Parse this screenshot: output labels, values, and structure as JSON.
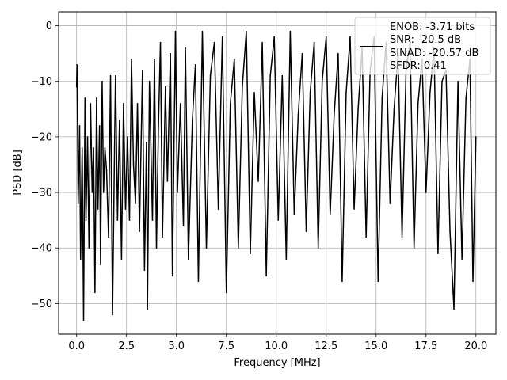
{
  "chart_data": {
    "type": "line",
    "xlabel": "Frequency [MHz]",
    "ylabel": "PSD [dB]",
    "xlim": [
      -0.9,
      21.0
    ],
    "ylim": [
      -55.5,
      2.5
    ],
    "x_ticks": [
      0.0,
      2.5,
      5.0,
      7.5,
      10.0,
      12.5,
      15.0,
      17.5,
      20.0
    ],
    "x_tick_labels": [
      "0.0",
      "2.5",
      "5.0",
      "7.5",
      "10.0",
      "12.5",
      "15.0",
      "17.5",
      "20.0"
    ],
    "y_ticks": [
      0,
      -10,
      -20,
      -30,
      -40,
      -50
    ],
    "y_tick_labels": [
      "0",
      "−10",
      "−20",
      "−30",
      "−40",
      "−50"
    ],
    "grid": true,
    "legend_position": "top-right",
    "legend_lines": [
      "ENOB: -3.71 bits",
      "SNR: -20.5 dB",
      "SINAD: -20.57 dB",
      "SFDR: 0.41"
    ],
    "series": [
      {
        "color": "#000000",
        "x": [
          0.0,
          0.02,
          0.08,
          0.15,
          0.2,
          0.28,
          0.35,
          0.42,
          0.47,
          0.55,
          0.62,
          0.7,
          0.78,
          0.85,
          0.92,
          1.0,
          1.07,
          1.15,
          1.2,
          1.28,
          1.35,
          1.42,
          1.5,
          1.6,
          1.7,
          1.8,
          1.9,
          1.95,
          2.05,
          2.15,
          2.25,
          2.35,
          2.45,
          2.55,
          2.65,
          2.75,
          2.85,
          2.95,
          3.05,
          3.15,
          3.3,
          3.4,
          3.5,
          3.55,
          3.65,
          3.8,
          3.9,
          4.0,
          4.1,
          4.2,
          4.3,
          4.45,
          4.55,
          4.7,
          4.8,
          4.95,
          5.05,
          5.2,
          5.35,
          5.45,
          5.6,
          5.8,
          5.95,
          6.1,
          6.3,
          6.5,
          6.7,
          6.9,
          7.1,
          7.3,
          7.5,
          7.7,
          7.9,
          8.1,
          8.3,
          8.5,
          8.7,
          8.9,
          9.1,
          9.3,
          9.5,
          9.7,
          9.9,
          10.1,
          10.3,
          10.5,
          10.7,
          10.9,
          11.1,
          11.3,
          11.5,
          11.7,
          11.9,
          12.1,
          12.3,
          12.5,
          12.7,
          12.9,
          13.1,
          13.3,
          13.5,
          13.7,
          13.9,
          14.1,
          14.3,
          14.5,
          14.7,
          14.9,
          15.1,
          15.3,
          15.5,
          15.7,
          15.9,
          16.1,
          16.3,
          16.5,
          16.7,
          16.9,
          17.1,
          17.3,
          17.5,
          17.7,
          17.9,
          18.1,
          18.3,
          18.5,
          18.7,
          18.9,
          19.1,
          19.3,
          19.5,
          19.7,
          19.85,
          20.0
        ],
        "y": [
          -11,
          -7,
          -32,
          -18,
          -42,
          -22,
          -53,
          -13,
          -35,
          -20,
          -40,
          -14,
          -30,
          -22,
          -48,
          -13,
          -33,
          -18,
          -43,
          -10,
          -30,
          -22,
          -26,
          -38,
          -9,
          -52,
          -22,
          -9,
          -35,
          -17,
          -42,
          -14,
          -33,
          -20,
          -35,
          -6,
          -25,
          -32,
          -14,
          -37,
          -8,
          -44,
          -21,
          -51,
          -10,
          -35,
          -6,
          -40,
          -18,
          -3,
          -38,
          -11,
          -28,
          -5,
          -45,
          -1,
          -30,
          -14,
          -36,
          -4,
          -42,
          -17,
          -7,
          -46,
          -1,
          -40,
          -9,
          -3,
          -33,
          -2,
          -48,
          -14,
          -6,
          -40,
          -11,
          -1,
          -41,
          -12,
          -28,
          -3,
          -45,
          -9,
          -2,
          -35,
          -9,
          -42,
          -1,
          -34,
          -16,
          -5,
          -37,
          -12,
          -3,
          -40,
          -10,
          -2,
          -34,
          -16,
          -5,
          -46,
          -12,
          -2,
          -33,
          -15,
          -4,
          -38,
          -8,
          -2,
          -46,
          -13,
          -3,
          -32,
          -15,
          -5,
          -38,
          -8,
          -3,
          -40,
          -14,
          -6,
          -30,
          -12,
          -4,
          -41,
          -10,
          -8,
          -37,
          -51,
          -10,
          -42,
          -13,
          -6,
          -46,
          -20
        ]
      }
    ]
  }
}
